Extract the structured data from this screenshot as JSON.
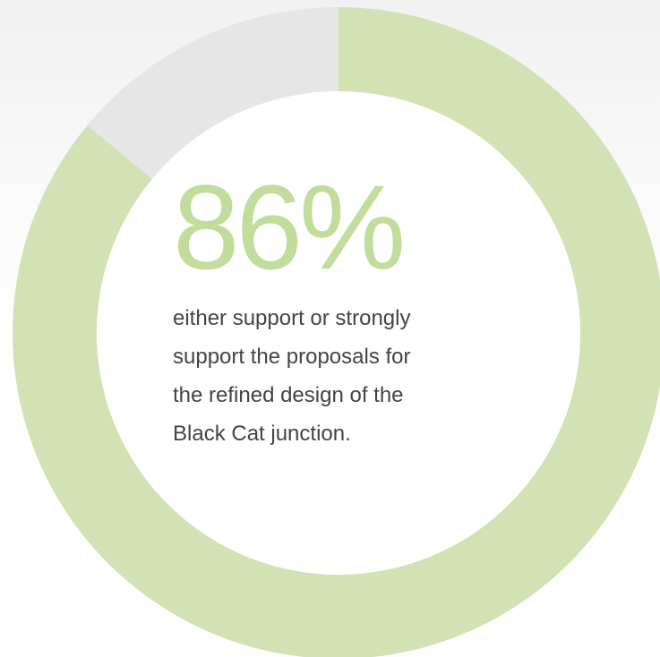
{
  "chart_data": {
    "type": "pie",
    "style": "donut",
    "slices": [
      {
        "value": 86,
        "color": "#d3e2b4"
      },
      {
        "value": 14,
        "color": "#e6e6e6"
      }
    ],
    "start_angle": "top",
    "direction": "clockwise"
  },
  "headline": {
    "value": "86%",
    "color": "#c2dc9c"
  },
  "caption": {
    "lines": [
      "either support or strongly",
      "support the proposals for",
      "the refined design of the",
      "Black Cat junction."
    ]
  }
}
